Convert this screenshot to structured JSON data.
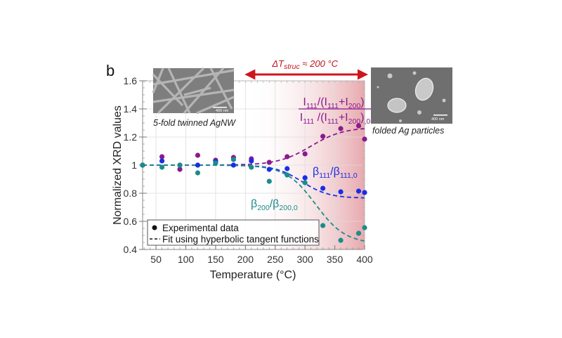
{
  "chart_data": {
    "type": "scatter",
    "panel_label": "b",
    "xlabel": "Temperature (°C)",
    "ylabel": "Normalized XRD values",
    "xlim": [
      27.5,
      400
    ],
    "ylim": [
      0.4,
      1.6
    ],
    "xticks": [
      50,
      100,
      150,
      200,
      250,
      300,
      350,
      400
    ],
    "xtick_labels": [
      "50",
      "100",
      "150",
      "200",
      "250",
      "300",
      "350",
      "400"
    ],
    "yticks": [
      0.4,
      0.6,
      0.8,
      1.0,
      1.2,
      1.4,
      1.6
    ],
    "ytick_labels": [
      "0.4",
      "0.6",
      "0.8",
      "1",
      "1.2",
      "1.4",
      "1.6"
    ],
    "grid": true,
    "shaded_region": {
      "x": [
        200,
        400
      ],
      "color": "#e8a0a6",
      "label": "ΔT_struc ≈ 200 °C"
    },
    "range_annotation": {
      "from": 200,
      "to": 400,
      "color": "#d0141c",
      "text_main": "ΔT",
      "text_sub": "struc",
      "text_rest": " ≈ 200  °C"
    },
    "series": [
      {
        "name": "I111/(I111+I200) normalized",
        "color": "#8b1a8f",
        "label_num": "I111/(I111+I200)",
        "label_den": "I111 /(I111+I200),0",
        "x": [
          27.5,
          60,
          90,
          120,
          150,
          180,
          210,
          240,
          270,
          300,
          330,
          360,
          390,
          400
        ],
        "y": [
          1.0,
          1.06,
          0.97,
          1.07,
          1.035,
          1.055,
          1.045,
          1.02,
          1.06,
          1.08,
          1.205,
          1.26,
          1.28,
          1.185
        ],
        "fit": {
          "y0": 1.0,
          "amp": 0.27,
          "center": 310,
          "width": 55
        }
      },
      {
        "name": "β111/β111,0",
        "color": "#1a2de6",
        "label": "β111/β111,0",
        "x": [
          27.5,
          60,
          90,
          120,
          150,
          180,
          210,
          240,
          270,
          300,
          330,
          360,
          390,
          400
        ],
        "y": [
          1.0,
          1.03,
          1.0,
          1.0,
          1.025,
          1.0,
          1.03,
          0.97,
          0.975,
          0.91,
          0.835,
          0.81,
          0.815,
          0.805
        ],
        "fit": {
          "y0": 1.0,
          "amp": -0.235,
          "center": 295,
          "width": 45
        }
      },
      {
        "name": "β200/β200,0",
        "color": "#1a8c8a",
        "label": "β200/β200,0",
        "x": [
          27.5,
          60,
          90,
          120,
          150,
          180,
          210,
          240,
          270,
          300,
          330,
          360,
          390,
          400
        ],
        "y": [
          1.0,
          0.985,
          1.0,
          0.945,
          1.015,
          1.04,
          0.985,
          0.885,
          0.93,
          0.875,
          0.57,
          0.465,
          0.515,
          0.555
        ],
        "fit": {
          "y0": 1.0,
          "amp": -0.56,
          "center": 318,
          "width": 50
        }
      }
    ],
    "legend": {
      "position": "bottom-left",
      "entries": [
        {
          "marker": "dot",
          "label": "Experimental data"
        },
        {
          "marker": "dash",
          "label": "Fit using hyperbolic tangent functions"
        }
      ]
    },
    "insets": [
      {
        "caption": "5-fold twinned AgNW",
        "scale_bar": "400 nm",
        "position": "top-left"
      },
      {
        "caption": "folded Ag particles",
        "scale_bar": "400 nm",
        "position": "top-right"
      }
    ]
  }
}
